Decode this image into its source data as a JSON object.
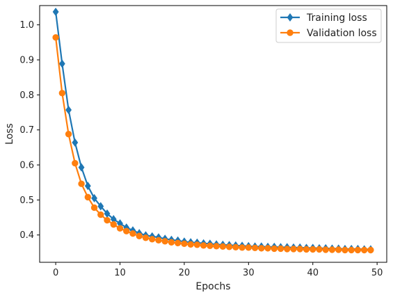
{
  "chart_data": {
    "type": "line",
    "title": "",
    "xlabel": "Epochs",
    "ylabel": "Loss",
    "xlim": [
      -2.5,
      51.5
    ],
    "ylim": [
      0.322,
      1.055
    ],
    "xticks": [
      0,
      10,
      20,
      30,
      40,
      50
    ],
    "yticks": [
      0.4,
      0.5,
      0.6,
      0.7,
      0.8,
      0.9,
      1.0
    ],
    "xtick_labels": [
      "0",
      "10",
      "20",
      "30",
      "40",
      "50"
    ],
    "ytick_labels": [
      "0.4",
      "0.5",
      "0.6",
      "0.7",
      "0.8",
      "0.9",
      "1.0"
    ],
    "grid": false,
    "legend_position": "top-right",
    "x": [
      0,
      1,
      2,
      3,
      4,
      5,
      6,
      7,
      8,
      9,
      10,
      11,
      12,
      13,
      14,
      15,
      16,
      17,
      18,
      19,
      20,
      21,
      22,
      23,
      24,
      25,
      26,
      27,
      28,
      29,
      30,
      31,
      32,
      33,
      34,
      35,
      36,
      37,
      38,
      39,
      40,
      41,
      42,
      43,
      44,
      45,
      46,
      47,
      48,
      49
    ],
    "series": [
      {
        "name": "Training loss",
        "color": "#1f77b4",
        "marker": "diamond",
        "values": [
          1.037,
          0.889,
          0.757,
          0.664,
          0.593,
          0.54,
          0.505,
          0.482,
          0.461,
          0.445,
          0.433,
          0.421,
          0.413,
          0.405,
          0.399,
          0.396,
          0.393,
          0.389,
          0.386,
          0.384,
          0.381,
          0.379,
          0.378,
          0.376,
          0.375,
          0.373,
          0.372,
          0.371,
          0.37,
          0.369,
          0.368,
          0.367,
          0.367,
          0.366,
          0.366,
          0.365,
          0.365,
          0.364,
          0.364,
          0.363,
          0.363,
          0.362,
          0.362,
          0.361,
          0.361,
          0.36,
          0.36,
          0.36,
          0.359,
          0.359
        ]
      },
      {
        "name": "Validation loss",
        "color": "#ff7f0e",
        "marker": "circle",
        "values": [
          0.964,
          0.805,
          0.688,
          0.605,
          0.546,
          0.508,
          0.478,
          0.458,
          0.442,
          0.43,
          0.419,
          0.411,
          0.404,
          0.397,
          0.392,
          0.388,
          0.385,
          0.382,
          0.379,
          0.377,
          0.375,
          0.373,
          0.372,
          0.37,
          0.369,
          0.368,
          0.367,
          0.366,
          0.365,
          0.364,
          0.364,
          0.363,
          0.362,
          0.362,
          0.361,
          0.361,
          0.36,
          0.36,
          0.36,
          0.359,
          0.359,
          0.359,
          0.358,
          0.358,
          0.358,
          0.357,
          0.357,
          0.357,
          0.357,
          0.357
        ]
      }
    ]
  }
}
